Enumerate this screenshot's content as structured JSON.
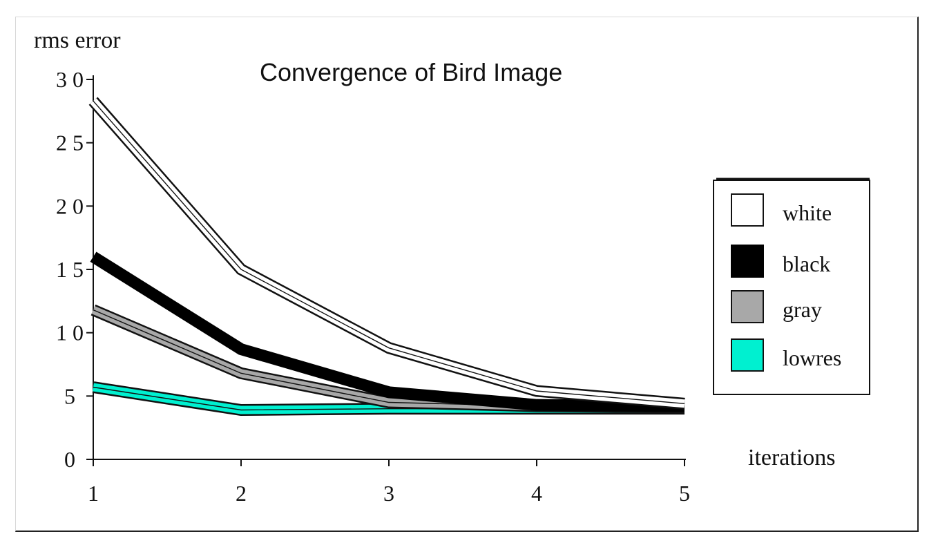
{
  "chart_data": {
    "type": "line",
    "title": "Convergence of Bird Image",
    "xlabel": "iterations",
    "ylabel": "rms error",
    "x": [
      1,
      2,
      3,
      4,
      5
    ],
    "xticks": [
      "1",
      "2",
      "3",
      "4",
      "5"
    ],
    "yticks": [
      {
        "v": 0,
        "label": "0"
      },
      {
        "v": 5,
        "label": "5"
      },
      {
        "v": 10,
        "label": "1 0"
      },
      {
        "v": 15,
        "label": "1 5"
      },
      {
        "v": 20,
        "label": "2 0"
      },
      {
        "v": 25,
        "label": "2 5"
      },
      {
        "v": 30,
        "label": "3 0"
      }
    ],
    "ylim": [
      0,
      30
    ],
    "xlim": [
      1,
      5
    ],
    "grid": false,
    "legend_position": "right",
    "series": [
      {
        "name": "lowres",
        "values": [
          5.7,
          3.9,
          4.0,
          4.0,
          4.0
        ],
        "color": "#00f0d0",
        "outline": "#111111"
      },
      {
        "name": "gray",
        "values": [
          11.8,
          6.8,
          4.5,
          4.2,
          4.1
        ],
        "color": "#a8a8a8",
        "outline": "#111111"
      },
      {
        "name": "black",
        "values": [
          16.0,
          8.7,
          5.3,
          4.3,
          4.2
        ],
        "color": "#000000",
        "outline": "#000000"
      },
      {
        "name": "white",
        "values": [
          28.3,
          15.0,
          8.8,
          5.4,
          4.4
        ],
        "color": "#ffffff",
        "outline": "#111111"
      }
    ],
    "legend_order": [
      "white",
      "black",
      "gray",
      "lowres"
    ]
  }
}
